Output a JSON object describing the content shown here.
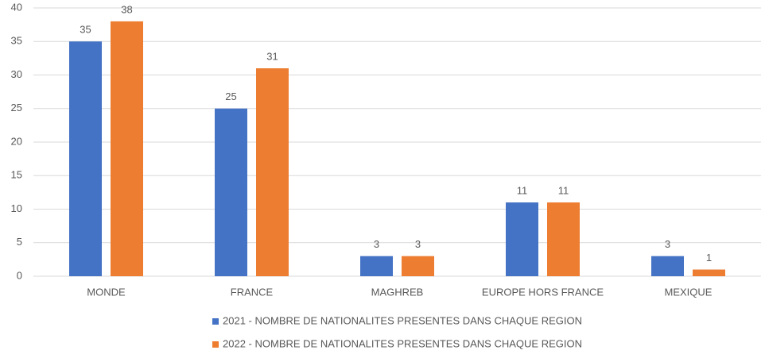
{
  "chart_data": {
    "type": "bar",
    "categories": [
      "MONDE",
      "FRANCE",
      "MAGHREB",
      "EUROPE HORS FRANCE",
      "MEXIQUE"
    ],
    "series": [
      {
        "name": "2021 - NOMBRE DE NATIONALITES PRESENTES DANS CHAQUE REGION",
        "color": "#4472c4",
        "values": [
          35,
          25,
          3,
          11,
          3
        ]
      },
      {
        "name": "2022 - NOMBRE DE NATIONALITES PRESENTES DANS CHAQUE REGION",
        "color": "#ed7d31",
        "values": [
          38,
          31,
          3,
          11,
          1
        ]
      }
    ],
    "ylim": [
      0,
      40
    ],
    "yticks": [
      0,
      5,
      10,
      15,
      20,
      25,
      30,
      35,
      40
    ],
    "grid": true,
    "legend": "bottom"
  }
}
